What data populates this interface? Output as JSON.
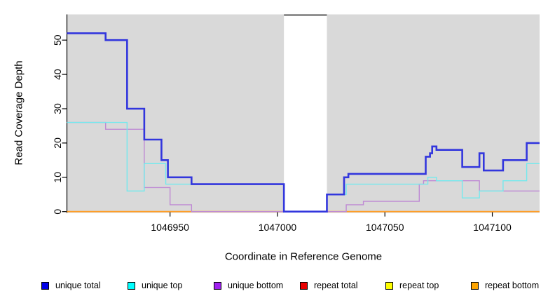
{
  "figure": {
    "y_axis_label": "Read Coverage Depth",
    "x_axis_label": "Coordinate in Reference Genome"
  },
  "chart_data": {
    "type": "line",
    "subtype": "step",
    "title": "",
    "xlabel": "Coordinate in Reference Genome",
    "ylabel": "Read Coverage Depth",
    "xlim": [
      1046902,
      1047122
    ],
    "ylim": [
      0,
      57.5
    ],
    "x_ticks": [
      1046950,
      1047000,
      1047050,
      1047100
    ],
    "y_ticks": [
      0,
      10,
      20,
      30,
      40,
      50
    ],
    "panel_background": "#d9d9d9",
    "no_data_region": {
      "x_start": 1047003,
      "x_end": 1047023,
      "fill": "#ffffff",
      "top_line_color": "#7a7a7a"
    },
    "grid": "off",
    "legend_position": "bottom",
    "series": [
      {
        "name": "repeat total",
        "color": "#dd2222",
        "width": 1.2,
        "steps": [
          [
            1046902,
            0
          ]
        ]
      },
      {
        "name": "repeat top",
        "color": "#f2f200",
        "width": 1.2,
        "steps": [
          [
            1046902,
            0
          ]
        ]
      },
      {
        "name": "repeat bottom",
        "color": "#ff9d26",
        "width": 1.8,
        "steps": [
          [
            1046902,
            0
          ]
        ]
      },
      {
        "name": "unique bottom",
        "color": "#bf8ad4",
        "width": 1.4,
        "steps": [
          [
            1046902,
            26
          ],
          [
            1046920,
            24
          ],
          [
            1046938,
            7
          ],
          [
            1046950,
            2
          ],
          [
            1046960,
            0
          ],
          [
            1047032,
            2
          ],
          [
            1047040,
            3
          ],
          [
            1047066,
            8
          ],
          [
            1047068,
            9
          ],
          [
            1047094,
            6
          ]
        ]
      },
      {
        "name": "unique top",
        "color": "#74e9ed",
        "width": 1.4,
        "steps": [
          [
            1046902,
            26
          ],
          [
            1046930,
            6
          ],
          [
            1046938,
            14
          ],
          [
            1046948,
            8
          ],
          [
            1047003,
            0
          ],
          [
            1047023,
            5
          ],
          [
            1047032,
            8
          ],
          [
            1047070,
            10
          ],
          [
            1047074,
            9
          ],
          [
            1047086,
            4
          ],
          [
            1047094,
            6
          ],
          [
            1047105,
            9
          ],
          [
            1047116,
            14
          ]
        ]
      },
      {
        "name": "unique total",
        "color": "#3236dd",
        "width": 2.6,
        "steps": [
          [
            1046902,
            52
          ],
          [
            1046920,
            50
          ],
          [
            1046930,
            30
          ],
          [
            1046938,
            21
          ],
          [
            1046946,
            15
          ],
          [
            1046949,
            10
          ],
          [
            1046960,
            8
          ],
          [
            1047003,
            0
          ],
          [
            1047023,
            5
          ],
          [
            1047031,
            10
          ],
          [
            1047033,
            11
          ],
          [
            1047069,
            16
          ],
          [
            1047071,
            17
          ],
          [
            1047072,
            19
          ],
          [
            1047074,
            18
          ],
          [
            1047086,
            13
          ],
          [
            1047094,
            17
          ],
          [
            1047096,
            12
          ],
          [
            1047105,
            15
          ],
          [
            1047116,
            20
          ]
        ]
      }
    ]
  },
  "legend": {
    "items": [
      {
        "label": "unique total",
        "color": "#0000e8"
      },
      {
        "label": "unique top",
        "color": "#00ffff"
      },
      {
        "label": "unique bottom",
        "color": "#a020f0"
      },
      {
        "label": "repeat total",
        "color": "#e80000"
      },
      {
        "label": "repeat top",
        "color": "#ffff00"
      },
      {
        "label": "repeat bottom",
        "color": "#ffa500"
      }
    ]
  }
}
